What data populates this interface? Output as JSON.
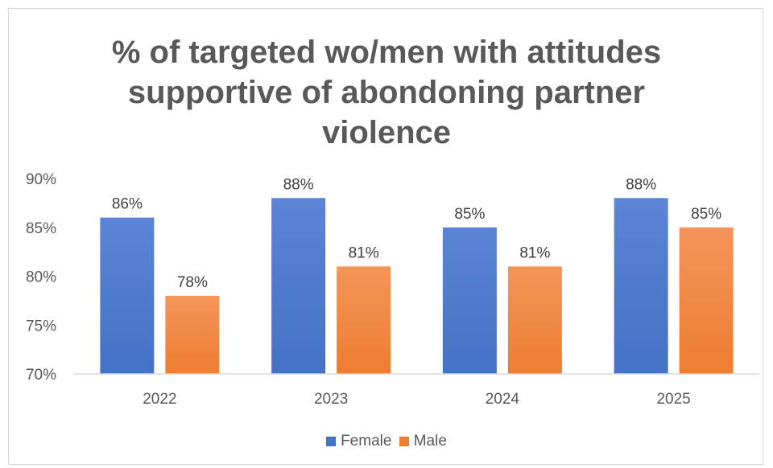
{
  "chart_data": {
    "type": "bar",
    "title_lines": [
      "% of targeted wo/men with attitudes",
      "supportive of abondoning partner",
      "violence"
    ],
    "categories": [
      "2022",
      "2023",
      "2024",
      "2025"
    ],
    "series": [
      {
        "name": "Female",
        "values": [
          86,
          88,
          85,
          88
        ],
        "labels": [
          "86%",
          "88%",
          "85%",
          "88%"
        ],
        "color": "#4472c4",
        "color_light": "#5b84d6"
      },
      {
        "name": "Male",
        "values": [
          78,
          81,
          81,
          85
        ],
        "labels": [
          "78%",
          "81%",
          "81%",
          "85%"
        ],
        "color": "#ed7d31",
        "color_light": "#f4955a"
      }
    ],
    "ylim": [
      70,
      90
    ],
    "yticks": [
      70,
      75,
      80,
      85,
      90
    ],
    "ytick_labels": [
      "70%",
      "75%",
      "80%",
      "85%",
      "90%"
    ],
    "xlabel": "",
    "ylabel": "",
    "grid": false,
    "legend_position": "bottom"
  }
}
